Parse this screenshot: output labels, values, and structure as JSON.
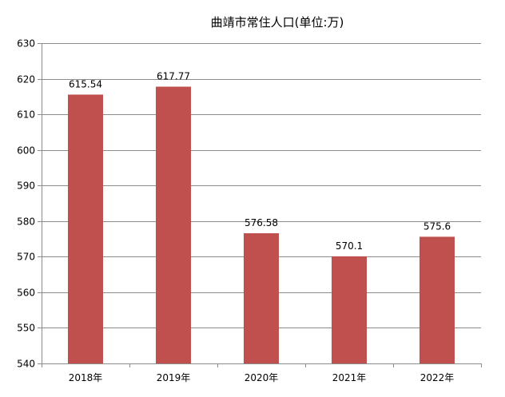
{
  "chart_data": {
    "type": "bar",
    "title": "曲靖市常住人口(单位:万)",
    "categories": [
      "2018年",
      "2019年",
      "2020年",
      "2021年",
      "2022年"
    ],
    "series": [
      {
        "values": [
          615.54,
          617.77,
          576.58,
          570.1,
          575.6
        ],
        "data_labels": [
          "615.54",
          "617.77",
          "576.58",
          "570.1",
          "575.6"
        ],
        "color": "#C0504D"
      }
    ],
    "y_ticks": [
      "540",
      "550",
      "560",
      "570",
      "580",
      "590",
      "600",
      "610",
      "620",
      "630"
    ],
    "ylim": [
      540,
      630
    ],
    "grid": true,
    "legend": "none"
  }
}
